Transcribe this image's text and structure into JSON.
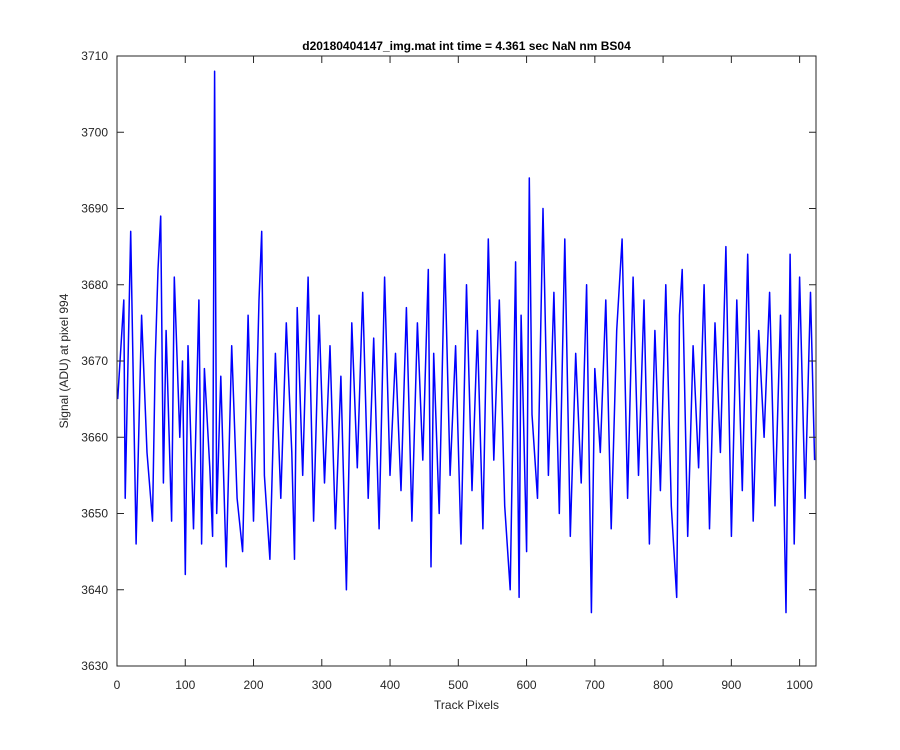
{
  "chart_data": {
    "type": "line",
    "title": "d20180404147_img.mat int time = 4.361 sec  NaN nm BS04",
    "xlabel": "Track Pixels",
    "ylabel": "Signal (ADU) at pixel 994",
    "xlim": [
      0,
      1024
    ],
    "ylim": [
      3630,
      3710
    ],
    "xticks": [
      0,
      100,
      200,
      300,
      400,
      500,
      600,
      700,
      800,
      900,
      1000
    ],
    "yticks": [
      3630,
      3640,
      3650,
      3660,
      3670,
      3680,
      3690,
      3700,
      3710
    ],
    "grid": false,
    "legend": "none",
    "series": [
      {
        "color": "#0000ff",
        "x": [
          1,
          10,
          12,
          20,
          28,
          36,
          44,
          52,
          56,
          60,
          64,
          68,
          72,
          80,
          84,
          92,
          96,
          100,
          104,
          112,
          120,
          124,
          128,
          136,
          140,
          143,
          146,
          152,
          160,
          168,
          176,
          184,
          192,
          200,
          208,
          212,
          216,
          224,
          232,
          240,
          248,
          256,
          260,
          264,
          272,
          280,
          288,
          296,
          304,
          312,
          320,
          328,
          336,
          344,
          352,
          360,
          368,
          376,
          384,
          392,
          400,
          408,
          416,
          424,
          432,
          440,
          448,
          456,
          460,
          464,
          472,
          480,
          488,
          496,
          504,
          512,
          520,
          528,
          536,
          544,
          552,
          560,
          568,
          576,
          584,
          589,
          592,
          600,
          604,
          608,
          616,
          624,
          632,
          640,
          648,
          656,
          664,
          672,
          680,
          688,
          695,
          700,
          708,
          716,
          724,
          732,
          740,
          748,
          756,
          764,
          772,
          780,
          788,
          796,
          804,
          812,
          820,
          824,
          828,
          836,
          844,
          852,
          860,
          868,
          876,
          884,
          892,
          900,
          908,
          916,
          924,
          932,
          940,
          948,
          956,
          964,
          972,
          980,
          986,
          992,
          1000,
          1008,
          1016,
          1022
        ],
        "y": [
          3665,
          3678,
          3652,
          3687,
          3646,
          3676,
          3658,
          3649,
          3670,
          3682,
          3689,
          3654,
          3674,
          3649,
          3681,
          3660,
          3670,
          3642,
          3672,
          3648,
          3678,
          3646,
          3669,
          3656,
          3647,
          3708,
          3650,
          3668,
          3643,
          3672,
          3652,
          3645,
          3676,
          3649,
          3678,
          3687,
          3655,
          3644,
          3671,
          3652,
          3675,
          3658,
          3644,
          3677,
          3655,
          3681,
          3649,
          3676,
          3654,
          3672,
          3648,
          3668,
          3640,
          3675,
          3656,
          3679,
          3652,
          3673,
          3648,
          3681,
          3655,
          3671,
          3653,
          3677,
          3649,
          3675,
          3657,
          3682,
          3643,
          3671,
          3650,
          3684,
          3655,
          3672,
          3646,
          3680,
          3653,
          3674,
          3648,
          3686,
          3657,
          3678,
          3651,
          3640,
          3683,
          3639,
          3676,
          3645,
          3694,
          3663,
          3652,
          3690,
          3655,
          3679,
          3650,
          3686,
          3647,
          3671,
          3654,
          3680,
          3637,
          3669,
          3658,
          3678,
          3648,
          3674,
          3686,
          3652,
          3681,
          3655,
          3678,
          3646,
          3674,
          3653,
          3680,
          3651,
          3639,
          3676,
          3682,
          3647,
          3672,
          3656,
          3680,
          3648,
          3675,
          3658,
          3685,
          3647,
          3678,
          3653,
          3684,
          3649,
          3674,
          3660,
          3679,
          3651,
          3676,
          3637,
          3684,
          3646,
          3681,
          3652,
          3679,
          3657
        ]
      }
    ]
  }
}
